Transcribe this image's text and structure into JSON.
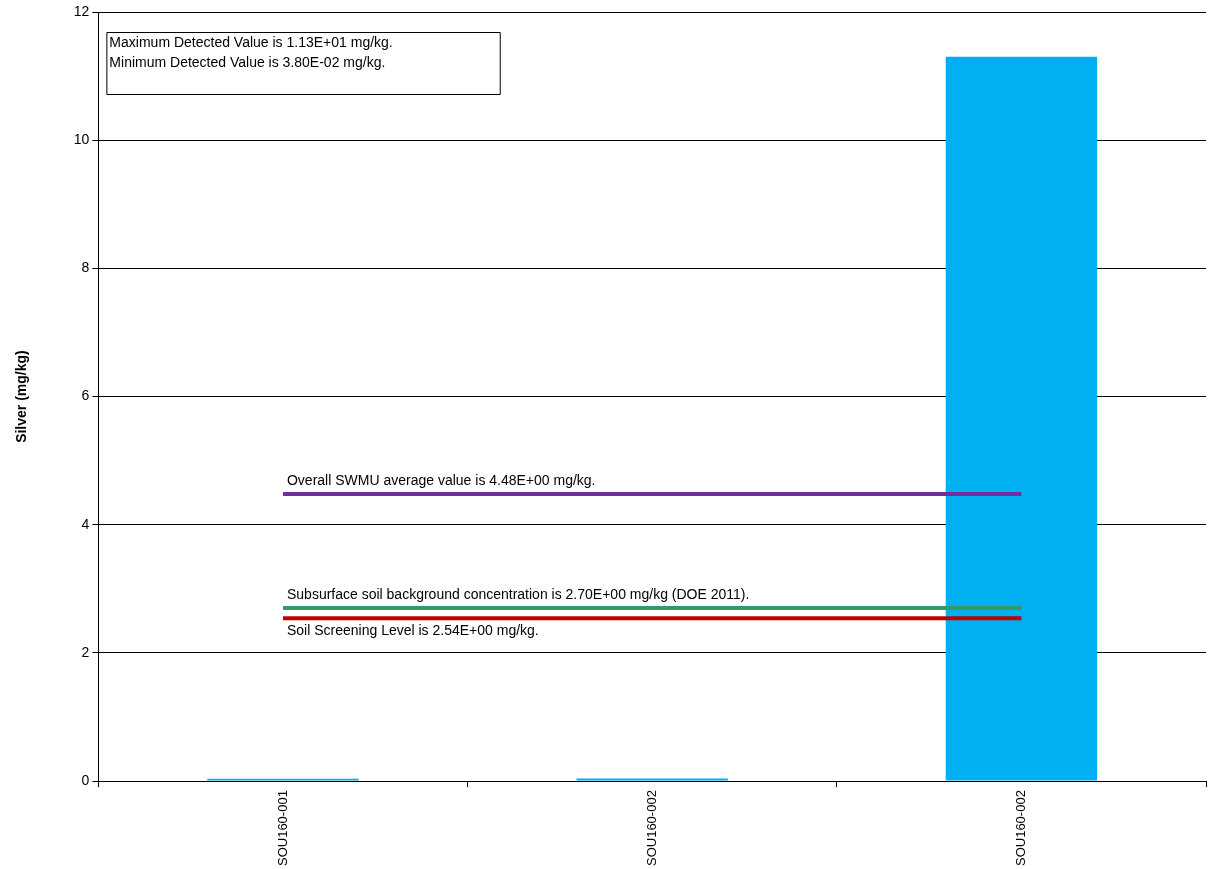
{
  "chart_data": {
    "type": "bar",
    "ylabel": "Silver (mg/kg)",
    "categories": [
      "SOU160-001",
      "SOU160-002",
      "SOU160-002"
    ],
    "values": [
      0.038,
      0.04,
      11.3
    ],
    "color": "#00b0f0",
    "ylim": [
      0,
      12
    ],
    "yticks": [
      0,
      2,
      4,
      6,
      8,
      10,
      12
    ],
    "grid": "y",
    "legend": false,
    "ref_lines": [
      {
        "axis": "y",
        "value": 4.48,
        "label": "Overall SWMU average value is 4.48E+00 mg/kg.",
        "color": "#7030a0"
      },
      {
        "axis": "y",
        "value": 2.7,
        "label": "Subsurface soil background concentration is 2.70E+00 mg/kg (DOE 2011).",
        "color": "#339966"
      },
      {
        "axis": "y",
        "value": 2.54,
        "label": "Soil Screening Level is 2.54E+00 mg/kg.",
        "color": "#c00000"
      }
    ],
    "annotations": [
      "Maximum Detected Value is 1.13E+01 mg/kg.",
      "Minimum Detected Value is 3.80E-02 mg/kg."
    ]
  }
}
